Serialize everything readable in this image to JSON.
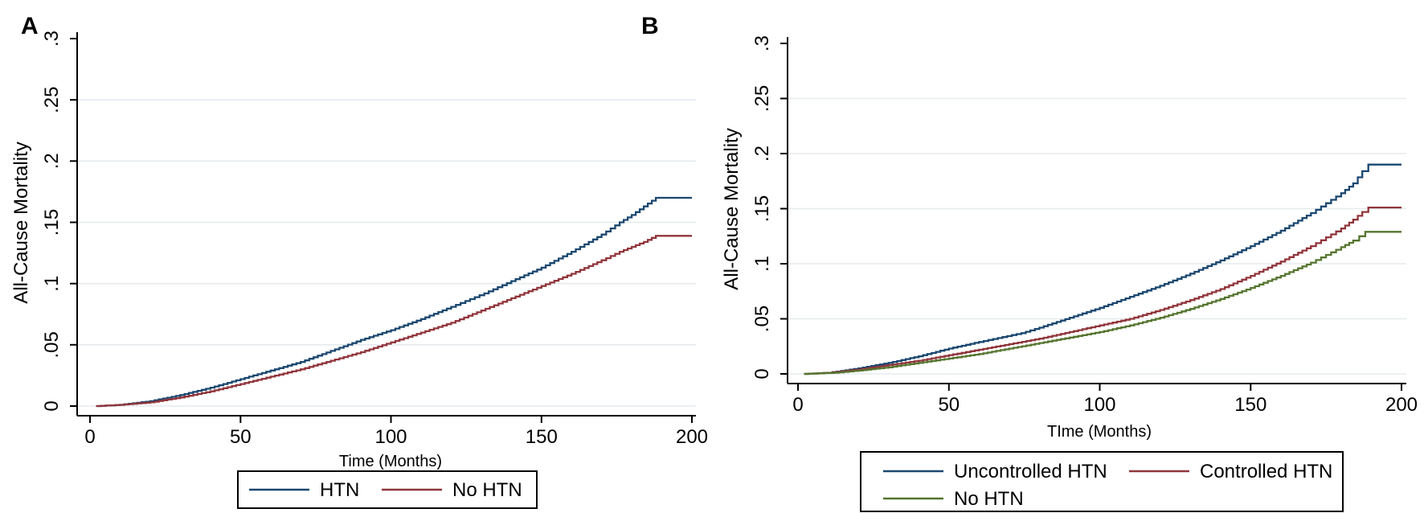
{
  "figure": {
    "background": "#ffffff",
    "axis_color": "#000000",
    "grid_color": "#e6ebee",
    "panels": [
      {
        "label": "A",
        "y_axis": {
          "title": "All-Cause Mortality",
          "tick_labels": [
            "0",
            ".05",
            ".1",
            ".15",
            ".2",
            ".25",
            ".3"
          ]
        },
        "x_axis": {
          "title": "Time (Months)",
          "tick_labels": [
            "0",
            "50",
            "100",
            "150",
            "200"
          ]
        },
        "legend": {
          "entries": [
            {
              "label": "HTN",
              "color": "#1a476f"
            },
            {
              "label": "No HTN",
              "color": "#90353b"
            }
          ]
        }
      },
      {
        "label": "B",
        "y_axis": {
          "title": "All-Cause Mortality",
          "tick_labels": [
            "0",
            ".05",
            ".1",
            ".15",
            ".2",
            ".25",
            ".3"
          ]
        },
        "x_axis": {
          "title": "TIme (Months)",
          "tick_labels": [
            "0",
            "50",
            "100",
            "150",
            "200"
          ]
        },
        "legend": {
          "entries": [
            {
              "label": "Uncontrolled HTN",
              "color": "#1a476f"
            },
            {
              "label": "Controlled HTN",
              "color": "#90353b"
            },
            {
              "label": "No HTN",
              "color": "#55752f"
            }
          ]
        }
      }
    ]
  },
  "chart_data": [
    {
      "type": "line",
      "panel": "A",
      "curve_style": "step",
      "title": "",
      "xlabel": "Time (Months)",
      "ylabel": "All-Cause Mortality",
      "xlim": [
        0,
        200
      ],
      "ylim": [
        0,
        0.3
      ],
      "x_tick_values": [
        0,
        50,
        100,
        150,
        200
      ],
      "y_tick_values": [
        0,
        0.05,
        0.1,
        0.15,
        0.2,
        0.25,
        0.3
      ],
      "grid": "horizontal",
      "legend_position": "below",
      "series": [
        {
          "name": "HTN",
          "color": "#1a476f",
          "points": [
            [
              2,
              0
            ],
            [
              10,
              0.001
            ],
            [
              20,
              0.004
            ],
            [
              30,
              0.009
            ],
            [
              40,
              0.015
            ],
            [
              50,
              0.022
            ],
            [
              60,
              0.029
            ],
            [
              70,
              0.036
            ],
            [
              80,
              0.045
            ],
            [
              90,
              0.054
            ],
            [
              100,
              0.062
            ],
            [
              110,
              0.071
            ],
            [
              120,
              0.081
            ],
            [
              131,
              0.092
            ],
            [
              140,
              0.102
            ],
            [
              150,
              0.113
            ],
            [
              160,
              0.126
            ],
            [
              170,
              0.14
            ],
            [
              176,
              0.15
            ],
            [
              180,
              0.156
            ],
            [
              184,
              0.163
            ],
            [
              188,
              0.17
            ],
            [
              200,
              0.17
            ]
          ]
        },
        {
          "name": "No HTN",
          "color": "#90353b",
          "points": [
            [
              2,
              0
            ],
            [
              10,
              0.001
            ],
            [
              20,
              0.003
            ],
            [
              30,
              0.007
            ],
            [
              40,
              0.012
            ],
            [
              50,
              0.018
            ],
            [
              60,
              0.024
            ],
            [
              70,
              0.03
            ],
            [
              80,
              0.037
            ],
            [
              90,
              0.044
            ],
            [
              100,
              0.052
            ],
            [
              110,
              0.06
            ],
            [
              120,
              0.068
            ],
            [
              130,
              0.078
            ],
            [
              140,
              0.088
            ],
            [
              150,
              0.098
            ],
            [
              160,
              0.108
            ],
            [
              170,
              0.119
            ],
            [
              176,
              0.126
            ],
            [
              180,
              0.13
            ],
            [
              184,
              0.134
            ],
            [
              188,
              0.139
            ],
            [
              200,
              0.139
            ]
          ]
        }
      ]
    },
    {
      "type": "line",
      "panel": "B",
      "curve_style": "step",
      "title": "",
      "xlabel": "TIme (Months)",
      "ylabel": "All-Cause Mortality",
      "xlim": [
        0,
        200
      ],
      "ylim": [
        0,
        0.3
      ],
      "x_tick_values": [
        0,
        50,
        100,
        150,
        200
      ],
      "y_tick_values": [
        0,
        0.05,
        0.1,
        0.15,
        0.2,
        0.25,
        0.3
      ],
      "grid": "horizontal",
      "legend_position": "below",
      "series": [
        {
          "name": "Uncontrolled HTN",
          "color": "#1a476f",
          "points": [
            [
              2,
              0
            ],
            [
              10,
              0.001
            ],
            [
              20,
              0.005
            ],
            [
              30,
              0.01
            ],
            [
              40,
              0.016
            ],
            [
              50,
              0.023
            ],
            [
              60,
              0.029
            ],
            [
              74,
              0.037
            ],
            [
              80,
              0.042
            ],
            [
              90,
              0.051
            ],
            [
              100,
              0.06
            ],
            [
              110,
              0.07
            ],
            [
              120,
              0.08
            ],
            [
              130,
              0.091
            ],
            [
              140,
              0.103
            ],
            [
              150,
              0.116
            ],
            [
              160,
              0.13
            ],
            [
              170,
              0.146
            ],
            [
              175,
              0.155
            ],
            [
              180,
              0.164
            ],
            [
              184,
              0.173
            ],
            [
              187,
              0.184
            ],
            [
              189,
              0.19
            ],
            [
              200,
              0.19
            ]
          ]
        },
        {
          "name": "Controlled HTN",
          "color": "#90353b",
          "points": [
            [
              2,
              0
            ],
            [
              10,
              0.001
            ],
            [
              20,
              0.004
            ],
            [
              30,
              0.008
            ],
            [
              40,
              0.012
            ],
            [
              50,
              0.017
            ],
            [
              60,
              0.022
            ],
            [
              70,
              0.027
            ],
            [
              80,
              0.032
            ],
            [
              90,
              0.038
            ],
            [
              100,
              0.044
            ],
            [
              110,
              0.05
            ],
            [
              120,
              0.058
            ],
            [
              130,
              0.067
            ],
            [
              140,
              0.077
            ],
            [
              150,
              0.089
            ],
            [
              160,
              0.102
            ],
            [
              170,
              0.116
            ],
            [
              175,
              0.124
            ],
            [
              180,
              0.132
            ],
            [
              184,
              0.14
            ],
            [
              187,
              0.147
            ],
            [
              189,
              0.151
            ],
            [
              200,
              0.151
            ]
          ]
        },
        {
          "name": "No HTN",
          "color": "#55752f",
          "points": [
            [
              2,
              0
            ],
            [
              12,
              0.001
            ],
            [
              20,
              0.003
            ],
            [
              30,
              0.006
            ],
            [
              40,
              0.01
            ],
            [
              50,
              0.014
            ],
            [
              60,
              0.018
            ],
            [
              70,
              0.023
            ],
            [
              80,
              0.028
            ],
            [
              90,
              0.033
            ],
            [
              100,
              0.038
            ],
            [
              110,
              0.044
            ],
            [
              120,
              0.051
            ],
            [
              130,
              0.059
            ],
            [
              140,
              0.068
            ],
            [
              150,
              0.078
            ],
            [
              160,
              0.089
            ],
            [
              170,
              0.101
            ],
            [
              175,
              0.108
            ],
            [
              180,
              0.115
            ],
            [
              184,
              0.121
            ],
            [
              186,
              0.125
            ],
            [
              188,
              0.129
            ],
            [
              200,
              0.129
            ]
          ]
        }
      ]
    }
  ]
}
